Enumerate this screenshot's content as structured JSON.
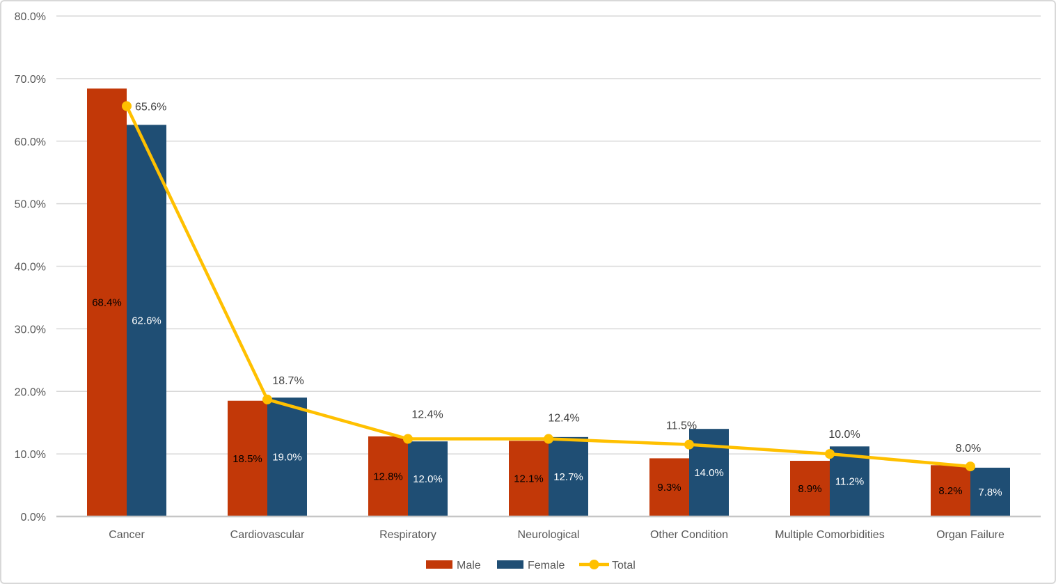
{
  "chart_data": {
    "type": "bar",
    "subtype": "grouped-bars-with-line-overlay",
    "title": "",
    "xlabel": "",
    "ylabel": "",
    "categories": [
      "Cancer",
      "Cardiovascular",
      "Respiratory",
      "Neurological",
      "Other Condition",
      "Multiple Comorbidities",
      "Organ Failure"
    ],
    "series": [
      {
        "name": "Male",
        "type": "bar",
        "color": "#C23808",
        "label_color": "#000000",
        "values": [
          68.4,
          18.5,
          12.8,
          12.1,
          9.3,
          8.9,
          8.2
        ]
      },
      {
        "name": "Female",
        "type": "bar",
        "color": "#1F4E74",
        "label_color": "#FFFFFF",
        "values": [
          62.6,
          19.0,
          12.0,
          12.7,
          14.0,
          11.2,
          7.8
        ]
      },
      {
        "name": "Total",
        "type": "line",
        "color": "#FFC000",
        "label_color": "#404040",
        "values": [
          65.6,
          18.7,
          12.4,
          12.4,
          11.5,
          10.0,
          8.0
        ]
      }
    ],
    "ylim": [
      0,
      80
    ],
    "ytick_step": 10,
    "ytick_labels": [
      "0.0%",
      "10.0%",
      "20.0%",
      "30.0%",
      "40.0%",
      "50.0%",
      "60.0%",
      "70.0%",
      "80.0%"
    ],
    "value_suffix": "%",
    "value_decimals": 1,
    "grid": true,
    "legend_position": "bottom",
    "legend_labels": [
      "Male",
      "Female",
      "Total"
    ],
    "colors": {
      "gridline": "#D9D9D9",
      "zero_line": "#C6C6C6",
      "axis_text": "#595959",
      "legend_text": "#595959",
      "background": "#FFFFFF",
      "border": "#D8D8D8"
    }
  }
}
